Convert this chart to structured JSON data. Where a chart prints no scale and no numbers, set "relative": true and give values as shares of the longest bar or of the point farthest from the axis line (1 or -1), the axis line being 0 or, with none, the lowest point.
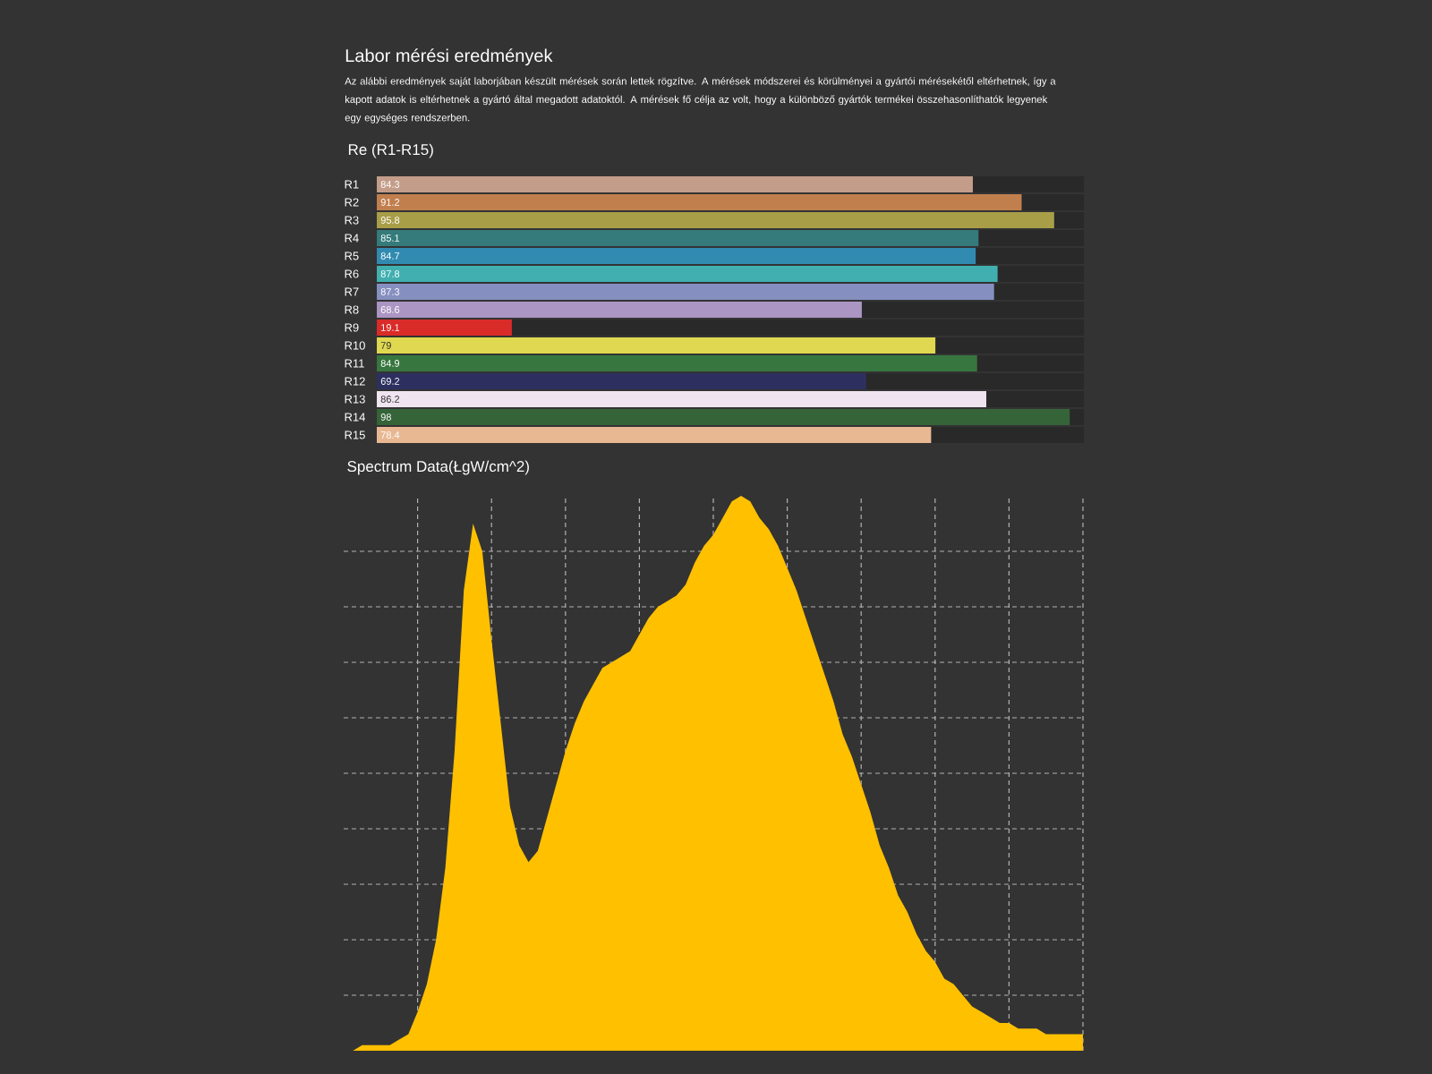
{
  "chart_data": [
    {
      "type": "bar",
      "orientation": "horizontal",
      "title": "Re (R1-R15)",
      "annotations": [
        "Labor mérési eredmények",
        "Az alábbi eredmények saját laborjában készült mérések során lettek rögzítve. A mérések módszerei és körülményei a gyártói mérésekétől eltérhetnek, így a kapott adatok is eltérhetnek a gyártó által megadott adatoktól. A mérések fő célja az volt, hogy a különböző gyártók termékei összehasonlíthatók legyenek egy egységes rendszerben."
      ],
      "categories": [
        "R1",
        "R2",
        "R3",
        "R4",
        "R5",
        "R6",
        "R7",
        "R8",
        "R9",
        "R10",
        "R11",
        "R12",
        "R13",
        "R14",
        "R15"
      ],
      "values": [
        84.3,
        91.2,
        95.8,
        85.1,
        84.7,
        87.8,
        87.3,
        68.6,
        19.1,
        79,
        84.9,
        69.2,
        86.2,
        98,
        78.4
      ],
      "colors": [
        "#c49d8a",
        "#c17f4e",
        "#a89e48",
        "#357b7b",
        "#318bb1",
        "#41afaf",
        "#8690c0",
        "#ab95c3",
        "#d92b28",
        "#dfd850",
        "#37773f",
        "#2d305f",
        "#f0e4f0",
        "#356438",
        "#e8b893"
      ],
      "xlim": [
        0,
        100
      ],
      "data_labels": true,
      "tick_labels": "y"
    },
    {
      "type": "area",
      "title": "Spectrum Data(ŁgW/cm^2)",
      "relative": true,
      "grid": true,
      "color": "#ffc000",
      "categories": [
        null,
        null,
        null,
        null,
        null,
        null,
        null,
        null,
        null,
        null,
        null,
        null,
        null,
        null,
        null,
        null,
        null,
        null,
        null,
        null,
        null,
        null,
        null,
        null,
        null,
        null,
        null,
        null,
        null,
        null,
        null,
        null,
        null,
        null,
        null,
        null,
        null,
        null,
        null,
        null,
        null,
        null,
        null,
        null,
        null,
        null,
        null,
        null,
        null,
        null,
        null,
        null,
        null,
        null,
        null,
        null,
        null,
        null,
        null,
        null,
        null,
        null,
        null,
        null,
        null,
        null,
        null,
        null,
        null,
        null,
        null,
        null,
        null,
        null,
        null,
        null,
        null,
        null,
        null,
        null,
        null
      ],
      "values": [
        0.0,
        0.0,
        0.01,
        0.01,
        0.01,
        0.01,
        0.02,
        0.03,
        0.07,
        0.12,
        0.2,
        0.33,
        0.54,
        0.83,
        0.95,
        0.9,
        0.74,
        0.59,
        0.44,
        0.37,
        0.34,
        0.36,
        0.42,
        0.48,
        0.54,
        0.59,
        0.63,
        0.66,
        0.69,
        0.7,
        0.71,
        0.72,
        0.75,
        0.78,
        0.8,
        0.81,
        0.82,
        0.84,
        0.88,
        0.91,
        0.93,
        0.96,
        0.99,
        1,
        0.99,
        0.96,
        0.94,
        0.91,
        0.87,
        0.83,
        0.78,
        0.73,
        0.68,
        0.63,
        0.57,
        0.53,
        0.48,
        0.43,
        0.37,
        0.33,
        0.28,
        0.25,
        0.21,
        0.18,
        0.16,
        0.13,
        0.12,
        0.1,
        0.08,
        0.07,
        0.06,
        0.05,
        0.05,
        0.04,
        0.04,
        0.04,
        0.03,
        0.03,
        0.03,
        0.03,
        0.03
      ]
    }
  ]
}
